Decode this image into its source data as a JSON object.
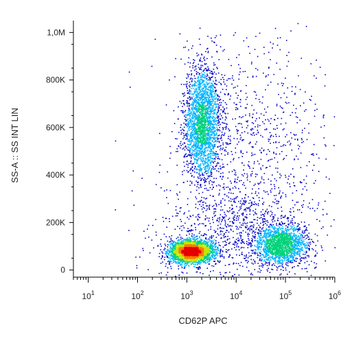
{
  "chart_data": {
    "type": "scatter",
    "style": "density pseudocolor dot plot",
    "xlabel": "CD62P APC",
    "ylabel": "SS-A :: SS INT LIN",
    "x_scale": "log",
    "y_scale": "linear",
    "xlim": [
      5,
      1000000
    ],
    "ylim": [
      -30000,
      1050000
    ],
    "x_ticks": [
      {
        "value": 10,
        "base": "10",
        "exp": "1"
      },
      {
        "value": 100,
        "base": "10",
        "exp": "2"
      },
      {
        "value": 1000,
        "base": "10",
        "exp": "3"
      },
      {
        "value": 10000,
        "base": "10",
        "exp": "4"
      },
      {
        "value": 100000,
        "base": "10",
        "exp": "5"
      },
      {
        "value": 1000000,
        "base": "10",
        "exp": "6"
      }
    ],
    "y_ticks": [
      {
        "value": 0,
        "label": "0"
      },
      {
        "value": 200000,
        "label": "200K"
      },
      {
        "value": 400000,
        "label": "400K"
      },
      {
        "value": 600000,
        "label": "600K"
      },
      {
        "value": 800000,
        "label": "800K"
      },
      {
        "value": 1000000,
        "label": "1,0M"
      }
    ],
    "grid": false,
    "colormap": [
      "#0000c8",
      "#00b4ff",
      "#00d27a",
      "#c8e600",
      "#ff7800",
      "#e60000"
    ],
    "populations": [
      {
        "x_center": 1200,
        "y_center": 80000,
        "x_log_spread": 0.22,
        "y_spread": 22000,
        "weight": 3000
      },
      {
        "x_center": 2000,
        "y_center": 620000,
        "x_log_spread": 0.18,
        "y_spread": 120000,
        "weight": 2400
      },
      {
        "x_center": 80000,
        "y_center": 110000,
        "x_log_spread": 0.25,
        "y_spread": 40000,
        "weight": 1700
      },
      {
        "x_center": 8000,
        "y_center": 150000,
        "x_log_spread": 0.8,
        "y_spread": 100000,
        "weight": 900
      },
      {
        "x_center": 20000,
        "y_center": 500000,
        "x_log_spread": 0.8,
        "y_spread": 250000,
        "weight": 1000
      }
    ]
  }
}
